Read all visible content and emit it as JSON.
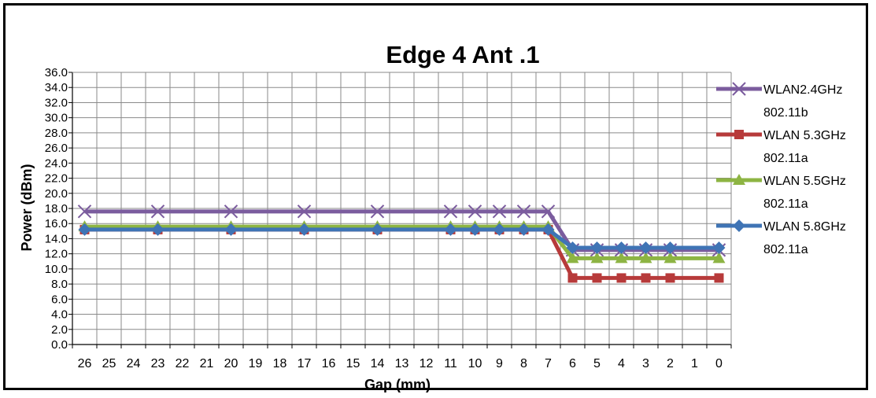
{
  "chart_data": {
    "type": "line",
    "title": "Edge 4 Ant .1",
    "xlabel": "Gap (mm)",
    "ylabel": "Power (dBm)",
    "ylim": [
      0,
      36
    ],
    "y_tick_step": 2,
    "y_ticks": [
      "0.0",
      "2.0",
      "4.0",
      "6.0",
      "8.0",
      "10.0",
      "12.0",
      "14.0",
      "16.0",
      "18.0",
      "20.0",
      "22.0",
      "24.0",
      "26.0",
      "28.0",
      "30.0",
      "32.0",
      "34.0",
      "36.0"
    ],
    "x_ticks": [
      "26",
      "25",
      "24",
      "23",
      "22",
      "21",
      "20",
      "19",
      "18",
      "17",
      "16",
      "15",
      "14",
      "13",
      "12",
      "11",
      "10",
      "9",
      "8",
      "7",
      "6",
      "5",
      "4",
      "3",
      "2",
      "1",
      "0"
    ],
    "x_reversed": true,
    "grid": true,
    "legend_position": "right",
    "series": [
      {
        "name": "WLAN2.4GHz 802.11b",
        "legend_lines": [
          "WLAN2.4GHz",
          "802.11b"
        ],
        "color": "#7b5c9e",
        "marker": "x",
        "x": [
          26,
          23,
          20,
          17,
          14,
          11,
          10,
          9,
          8,
          7,
          6,
          5,
          4,
          3,
          2,
          0
        ],
        "values": [
          17.6,
          17.6,
          17.6,
          17.6,
          17.6,
          17.6,
          17.6,
          17.6,
          17.6,
          17.6,
          12.5,
          12.5,
          12.5,
          12.5,
          12.5,
          12.5
        ]
      },
      {
        "name": "WLAN 5.3GHz 802.11a",
        "legend_lines": [
          "WLAN 5.3GHz",
          "802.11a"
        ],
        "color": "#b73a3a",
        "marker": "square",
        "x": [
          26,
          23,
          20,
          17,
          14,
          11,
          10,
          9,
          8,
          7,
          6,
          5,
          4,
          3,
          2,
          0
        ],
        "values": [
          15.2,
          15.2,
          15.2,
          15.2,
          15.2,
          15.2,
          15.2,
          15.2,
          15.2,
          15.2,
          8.8,
          8.8,
          8.8,
          8.8,
          8.8,
          8.8
        ]
      },
      {
        "name": "WLAN 5.5GHz 802.11a",
        "legend_lines": [
          "WLAN 5.5GHz",
          "802.11a"
        ],
        "color": "#8db443",
        "marker": "triangle",
        "x": [
          26,
          23,
          20,
          17,
          14,
          11,
          10,
          9,
          8,
          7,
          6,
          5,
          4,
          3,
          2,
          0
        ],
        "values": [
          15.6,
          15.6,
          15.6,
          15.6,
          15.6,
          15.6,
          15.6,
          15.6,
          15.6,
          15.6,
          11.4,
          11.4,
          11.4,
          11.4,
          11.4,
          11.4
        ]
      },
      {
        "name": "WLAN 5.8GHz 802.11a",
        "legend_lines": [
          "WLAN 5.8GHz",
          "802.11a"
        ],
        "color": "#3f74b5",
        "marker": "diamond",
        "x": [
          26,
          23,
          20,
          17,
          14,
          11,
          10,
          9,
          8,
          7,
          6,
          5,
          4,
          3,
          2,
          0
        ],
        "values": [
          15.2,
          15.2,
          15.2,
          15.2,
          15.2,
          15.2,
          15.2,
          15.2,
          15.2,
          15.2,
          12.8,
          12.8,
          12.8,
          12.8,
          12.8,
          12.8
        ]
      }
    ]
  }
}
